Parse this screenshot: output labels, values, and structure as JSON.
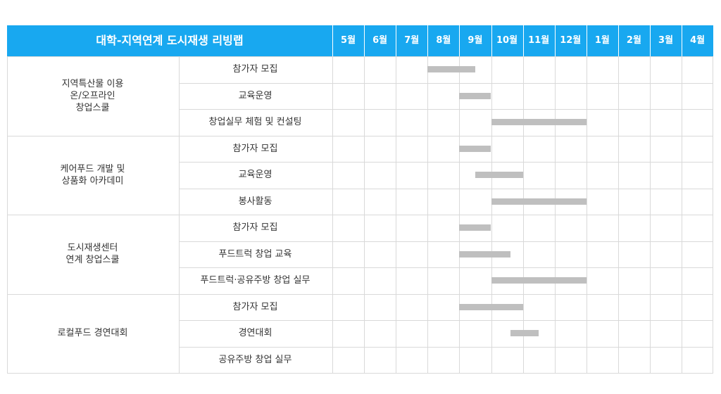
{
  "header": {
    "title": "대학-지역연계 도시재생 리빙랩",
    "months": [
      "5월",
      "6월",
      "7월",
      "8월",
      "9월",
      "10월",
      "11월",
      "12월",
      "1월",
      "2월",
      "3월",
      "4월"
    ]
  },
  "programs": [
    {
      "name": "지역특산물 이용\n온/오프라인\n창업스쿨",
      "tasks": [
        {
          "label": "참가자 모집",
          "start": 3.0,
          "end": 4.5
        },
        {
          "label": "교육운영",
          "start": 4.0,
          "end": 5.0
        },
        {
          "label": "창업실무 체험 및 컨설팅",
          "start": 5.0,
          "end": 8.0
        }
      ]
    },
    {
      "name": "케어푸드 개발 및\n상품화 아카데미",
      "tasks": [
        {
          "label": "참가자 모집",
          "start": 4.0,
          "end": 5.0
        },
        {
          "label": "교육운영",
          "start": 4.5,
          "end": 6.0
        },
        {
          "label": "봉사활동",
          "start": 5.0,
          "end": 8.0
        }
      ]
    },
    {
      "name": "도시재생센터\n연계 창업스쿨",
      "tasks": [
        {
          "label": "참가자 모집",
          "start": 4.0,
          "end": 5.0
        },
        {
          "label": "푸드트럭 창업 교육",
          "start": 4.0,
          "end": 5.6
        },
        {
          "label": "푸드트럭·공유주방 창업 실무",
          "start": 5.0,
          "end": 8.0
        }
      ]
    },
    {
      "name": "로컬푸드 경연대회",
      "tasks": [
        {
          "label": "참가자 모집",
          "start": 4.0,
          "end": 6.0
        },
        {
          "label": "경연대회",
          "start": 5.6,
          "end": 6.5
        },
        {
          "label": "공유주방 창업 실무",
          "start": null,
          "end": null
        }
      ]
    }
  ]
}
